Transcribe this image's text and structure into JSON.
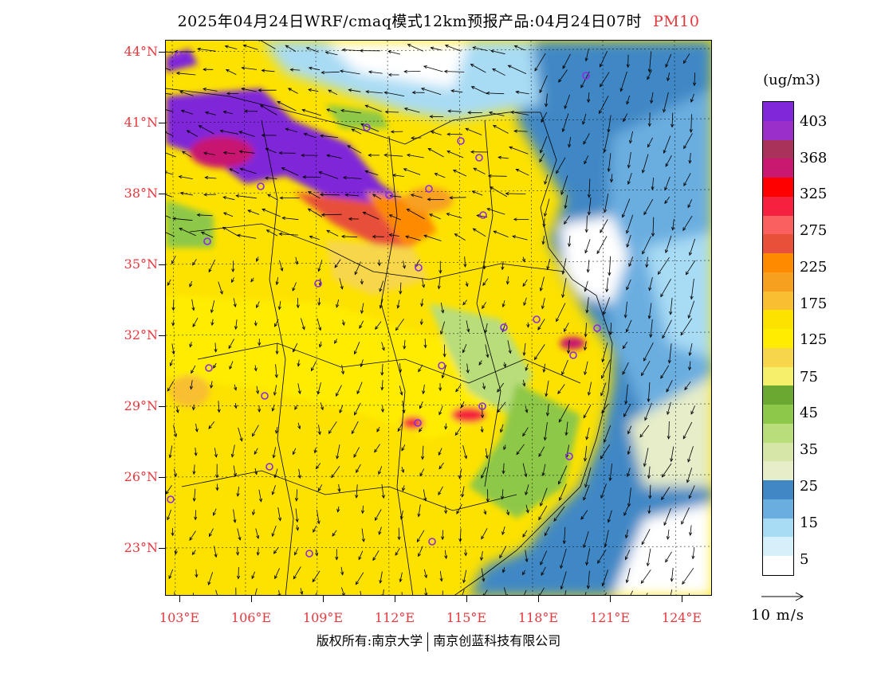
{
  "header": {
    "title": "2025年04月24日WRF/cmaq模式12km预报产品:04月24日07时",
    "pollutant": "PM10"
  },
  "map": {
    "lat_labels": [
      "44°N",
      "41°N",
      "38°N",
      "35°N",
      "32°N",
      "29°N",
      "26°N",
      "23°N"
    ],
    "lon_labels": [
      "103°E",
      "106°E",
      "109°E",
      "112°E",
      "115°E",
      "118°E",
      "121°E",
      "124°E"
    ]
  },
  "legend": {
    "unit": "(ug/m3)",
    "labels": [
      "403",
      "368",
      "325",
      "275",
      "225",
      "175",
      "125",
      "75",
      "45",
      "35",
      "25",
      "15",
      "5"
    ],
    "colors": [
      "#7f27d9",
      "#9b30c8",
      "#a8325a",
      "#c8186f",
      "#fe0000",
      "#f5213e",
      "#fb6060",
      "#e8503a",
      "#fe8a00",
      "#f7a020",
      "#f8bf32",
      "#fde200",
      "#ffec00",
      "#f7d64c",
      "#f4f06a",
      "#6aa832",
      "#8ec84a",
      "#b8dd7a",
      "#d6e6a8",
      "#e6edc8",
      "#3f88c5",
      "#6aaee0",
      "#a8dbf4",
      "#d6f0fa",
      "#ffffff"
    ]
  },
  "wind_reference": {
    "label": "10 m/s"
  },
  "footer": {
    "left": "版权所有:南京大学",
    "right": "南京创蓝科技有限公司"
  }
}
